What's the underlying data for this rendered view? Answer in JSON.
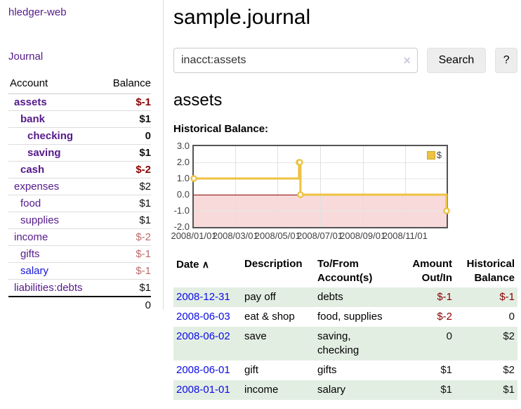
{
  "app": {
    "title": "hledger-web"
  },
  "sidebar": {
    "journal_link": "Journal",
    "accounts": {
      "col_account": "Account",
      "col_balance": "Balance",
      "rows": [
        {
          "name": "assets",
          "balance": "$-1",
          "depth": 1,
          "bold": true,
          "negative": true,
          "unvisited": false
        },
        {
          "name": "bank",
          "balance": "$1",
          "depth": 2,
          "bold": true,
          "negative": false,
          "unvisited": false
        },
        {
          "name": "checking",
          "balance": "0",
          "depth": 3,
          "bold": true,
          "negative": false,
          "unvisited": false
        },
        {
          "name": "saving",
          "balance": "$1",
          "depth": 3,
          "bold": true,
          "negative": false,
          "unvisited": false
        },
        {
          "name": "cash",
          "balance": "$-2",
          "depth": 2,
          "bold": true,
          "negative": true,
          "unvisited": false
        },
        {
          "name": "expenses",
          "balance": "$2",
          "depth": 1,
          "bold": false,
          "negative": false,
          "unvisited": false
        },
        {
          "name": "food",
          "balance": "$1",
          "depth": 2,
          "bold": false,
          "negative": false,
          "unvisited": false
        },
        {
          "name": "supplies",
          "balance": "$1",
          "depth": 2,
          "bold": false,
          "negative": false,
          "unvisited": false
        },
        {
          "name": "income",
          "balance": "$-2",
          "depth": 1,
          "bold": false,
          "negative": true,
          "unvisited": false
        },
        {
          "name": "gifts",
          "balance": "$-1",
          "depth": 2,
          "bold": false,
          "negative": true,
          "unvisited": false
        },
        {
          "name": "salary",
          "balance": "$-1",
          "depth": 2,
          "bold": false,
          "negative": true,
          "unvisited": true
        },
        {
          "name": "liabilities:debts",
          "balance": "$1",
          "depth": 1,
          "bold": false,
          "negative": false,
          "unvisited": false
        }
      ],
      "total": "0"
    }
  },
  "main": {
    "title": "sample.journal",
    "search": {
      "value": "inacct:assets",
      "clear_icon": "✕",
      "search_button": "Search",
      "help_button": "?"
    },
    "account_heading": "assets",
    "chart_heading": "Historical Balance:",
    "chart_data": {
      "type": "line",
      "step": true,
      "title": "Historical Balance:",
      "series": [
        {
          "name": "$",
          "x": [
            "2008/01/01",
            "2008/06/01",
            "2008/06/02",
            "2008/06/03",
            "2008/12/31"
          ],
          "values": [
            1,
            2,
            2,
            0,
            -1
          ]
        }
      ],
      "xrange": [
        "2008/01/01",
        "2008/12/31"
      ],
      "ylim": [
        -2,
        3
      ],
      "ytick_labels": [
        "3.0",
        "2.0",
        "1.0",
        "0.0",
        "-1.0",
        "-2.0"
      ],
      "xticks": [
        "2008/01/01",
        "2008/03/01",
        "2008/05/01",
        "2008/07/01",
        "2008/09/01",
        "2008/11/01"
      ],
      "legend": "$",
      "legend_position": "top-right",
      "negative_region_shaded": true,
      "colors": {
        "line": "#edc240",
        "negative_region": "#f8dada",
        "zero_line": "#8b0000"
      }
    },
    "register": {
      "headers": {
        "date": "Date",
        "sort_indicator": "∧",
        "description": "Description",
        "accounts": "To/From Account(s)",
        "amount": "Amount Out/In",
        "balance": "Historical Balance"
      },
      "rows": [
        {
          "date": "2008-12-31",
          "description": "pay off",
          "accounts": "debts",
          "amount": "$-1",
          "balance": "$-1"
        },
        {
          "date": "2008-06-03",
          "description": "eat & shop",
          "accounts": "food, supplies",
          "amount": "$-2",
          "balance": "0"
        },
        {
          "date": "2008-06-02",
          "description": "save",
          "accounts": "saving, checking",
          "amount": "0",
          "balance": "$2"
        },
        {
          "date": "2008-06-01",
          "description": "gift",
          "accounts": "gifts",
          "amount": "$1",
          "balance": "$2"
        },
        {
          "date": "2008-01-01",
          "description": "income",
          "accounts": "salary",
          "amount": "$1",
          "balance": "$1"
        }
      ]
    }
  }
}
